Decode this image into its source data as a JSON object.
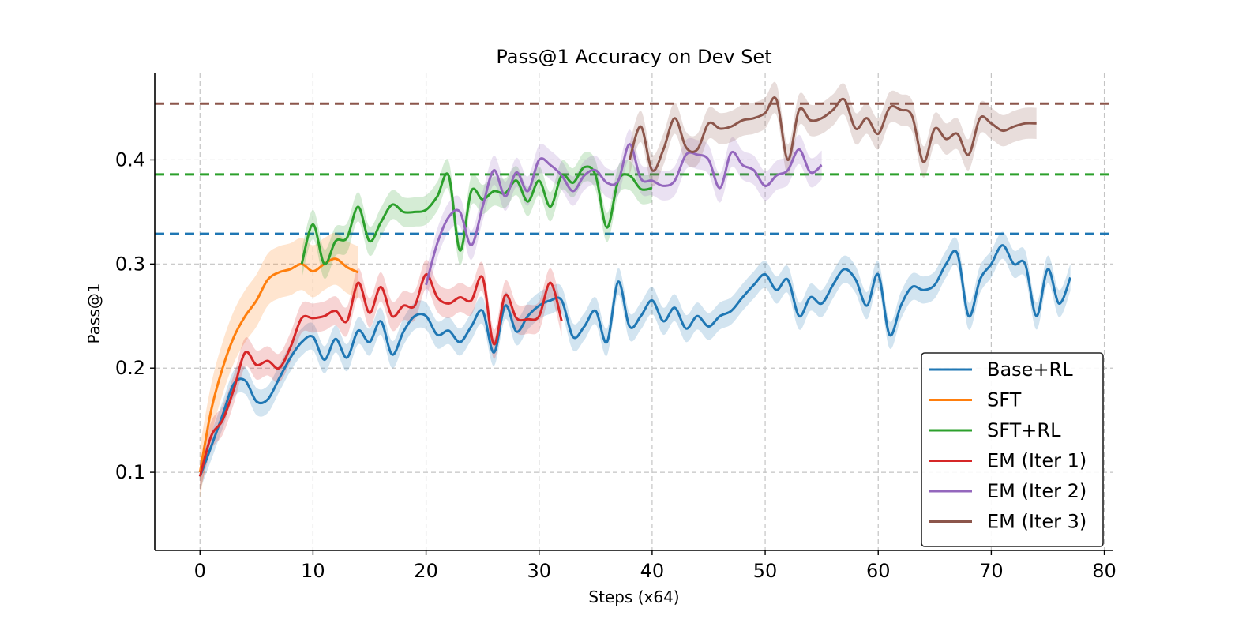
{
  "chart_data": {
    "type": "line",
    "title": "Pass@1 Accuracy on Dev Set",
    "xlabel": "Steps (x64)",
    "ylabel": "Pass@1",
    "xlim": [
      -4,
      80.8
    ],
    "ylim": [
      0.025,
      0.483
    ],
    "xticks": [
      0,
      10,
      20,
      30,
      40,
      50,
      60,
      70,
      80
    ],
    "yticks": [
      0.1,
      0.2,
      0.3,
      0.4
    ],
    "xtick_labels": [
      "0",
      "10",
      "20",
      "30",
      "40",
      "50",
      "60",
      "70",
      "80"
    ],
    "ytick_labels": [
      "0.1",
      "0.2",
      "0.3",
      "0.4"
    ],
    "grid": true,
    "legend_position": "lower-right",
    "series": [
      {
        "name": "Base+RL",
        "color": "#1f77b4",
        "band": 0.013,
        "x": [
          0,
          1,
          2,
          3,
          4,
          5,
          6,
          7,
          8,
          9,
          10,
          11,
          12,
          13,
          14,
          15,
          16,
          17,
          18,
          19,
          20,
          21,
          22,
          23,
          24,
          25,
          26,
          27,
          28,
          29,
          30,
          31,
          32,
          33,
          34,
          35,
          36,
          37,
          38,
          39,
          40,
          41,
          42,
          43,
          44,
          45,
          46,
          47,
          48,
          49,
          50,
          51,
          52,
          53,
          54,
          55,
          56,
          57,
          58,
          59,
          60,
          61,
          62,
          63,
          64,
          65,
          66,
          67,
          68,
          69,
          70,
          71,
          72,
          73,
          74,
          75,
          76,
          77
        ],
        "y": [
          0.096,
          0.125,
          0.155,
          0.185,
          0.188,
          0.168,
          0.17,
          0.19,
          0.21,
          0.225,
          0.23,
          0.208,
          0.228,
          0.21,
          0.236,
          0.225,
          0.245,
          0.213,
          0.235,
          0.25,
          0.25,
          0.232,
          0.236,
          0.225,
          0.24,
          0.255,
          0.215,
          0.26,
          0.235,
          0.25,
          0.26,
          0.265,
          0.265,
          0.23,
          0.24,
          0.255,
          0.225,
          0.283,
          0.24,
          0.25,
          0.265,
          0.245,
          0.258,
          0.238,
          0.25,
          0.24,
          0.25,
          0.255,
          0.268,
          0.28,
          0.29,
          0.275,
          0.285,
          0.25,
          0.268,
          0.262,
          0.28,
          0.295,
          0.285,
          0.26,
          0.29,
          0.232,
          0.26,
          0.278,
          0.275,
          0.28,
          0.3,
          0.31,
          0.25,
          0.285,
          0.3,
          0.318,
          0.3,
          0.3,
          0.25,
          0.295,
          0.262,
          0.287
        ]
      },
      {
        "name": "SFT",
        "color": "#ff7f0e",
        "band": 0.025,
        "x": [
          0,
          1,
          2,
          3,
          4,
          5,
          6,
          7,
          8,
          9,
          10,
          11,
          12,
          13,
          14
        ],
        "y": [
          0.1,
          0.16,
          0.2,
          0.23,
          0.25,
          0.265,
          0.285,
          0.292,
          0.295,
          0.3,
          0.293,
          0.3,
          0.305,
          0.297,
          0.292
        ]
      },
      {
        "name": "SFT+RL",
        "color": "#2ca02c",
        "band": 0.014,
        "x": [
          9,
          10,
          11,
          12,
          13,
          14,
          15,
          16,
          17,
          18,
          19,
          20,
          21,
          22,
          23,
          24,
          25,
          26,
          27,
          28,
          29,
          30,
          31,
          32,
          33,
          34,
          35,
          36,
          37,
          38,
          39,
          40
        ],
        "y": [
          0.3,
          0.338,
          0.3,
          0.322,
          0.325,
          0.355,
          0.322,
          0.34,
          0.357,
          0.35,
          0.35,
          0.352,
          0.365,
          0.385,
          0.313,
          0.37,
          0.362,
          0.37,
          0.368,
          0.38,
          0.36,
          0.38,
          0.355,
          0.385,
          0.378,
          0.393,
          0.385,
          0.335,
          0.38,
          0.385,
          0.372,
          0.373
        ]
      },
      {
        "name": "EM (Iter 1)",
        "color": "#d62728",
        "band": 0.014,
        "x": [
          0,
          1,
          2,
          3,
          4,
          5,
          6,
          7,
          8,
          9,
          10,
          11,
          12,
          13,
          14,
          15,
          16,
          17,
          18,
          19,
          20,
          21,
          22,
          23,
          24,
          25,
          26,
          27,
          28,
          29,
          30,
          31,
          32
        ],
        "y": [
          0.096,
          0.135,
          0.15,
          0.18,
          0.215,
          0.203,
          0.207,
          0.2,
          0.22,
          0.248,
          0.248,
          0.25,
          0.255,
          0.245,
          0.282,
          0.253,
          0.278,
          0.25,
          0.26,
          0.26,
          0.29,
          0.268,
          0.262,
          0.268,
          0.265,
          0.287,
          0.223,
          0.27,
          0.248,
          0.247,
          0.25,
          0.282,
          0.245
        ]
      },
      {
        "name": "EM (Iter 2)",
        "color": "#9467bd",
        "band": 0.014,
        "x": [
          20,
          21,
          22,
          23,
          24,
          25,
          26,
          27,
          28,
          29,
          30,
          31,
          32,
          33,
          34,
          35,
          36,
          37,
          38,
          39,
          40,
          41,
          42,
          43,
          44,
          45,
          46,
          47,
          48,
          49,
          50,
          51,
          52,
          53,
          54,
          55
        ],
        "y": [
          0.28,
          0.32,
          0.345,
          0.35,
          0.318,
          0.355,
          0.39,
          0.365,
          0.388,
          0.37,
          0.4,
          0.395,
          0.385,
          0.37,
          0.385,
          0.39,
          0.378,
          0.38,
          0.415,
          0.382,
          0.38,
          0.375,
          0.38,
          0.405,
          0.405,
          0.4,
          0.373,
          0.407,
          0.395,
          0.39,
          0.375,
          0.385,
          0.39,
          0.41,
          0.388,
          0.395
        ]
      },
      {
        "name": "EM (Iter 3)",
        "color": "#8c564b",
        "band": 0.015,
        "x": [
          38,
          39,
          40,
          41,
          42,
          43,
          44,
          45,
          46,
          47,
          48,
          49,
          50,
          51,
          52,
          53,
          54,
          55,
          56,
          57,
          58,
          59,
          60,
          61,
          62,
          63,
          64,
          65,
          66,
          67,
          68,
          69,
          70,
          71,
          72,
          73,
          74
        ],
        "y": [
          0.4,
          0.432,
          0.39,
          0.41,
          0.44,
          0.412,
          0.41,
          0.435,
          0.43,
          0.432,
          0.438,
          0.44,
          0.445,
          0.458,
          0.4,
          0.448,
          0.438,
          0.44,
          0.448,
          0.458,
          0.43,
          0.44,
          0.425,
          0.45,
          0.448,
          0.442,
          0.398,
          0.43,
          0.42,
          0.425,
          0.405,
          0.44,
          0.435,
          0.428,
          0.432,
          0.435,
          0.435
        ]
      }
    ],
    "reference_lines": [
      {
        "name": "Base+RL baseline",
        "color": "#1f77b4",
        "y": 0.329
      },
      {
        "name": "SFT+RL baseline",
        "color": "#2ca02c",
        "y": 0.386
      },
      {
        "name": "EM (Iter 3) baseline",
        "color": "#8c564b",
        "y": 0.454
      }
    ]
  }
}
